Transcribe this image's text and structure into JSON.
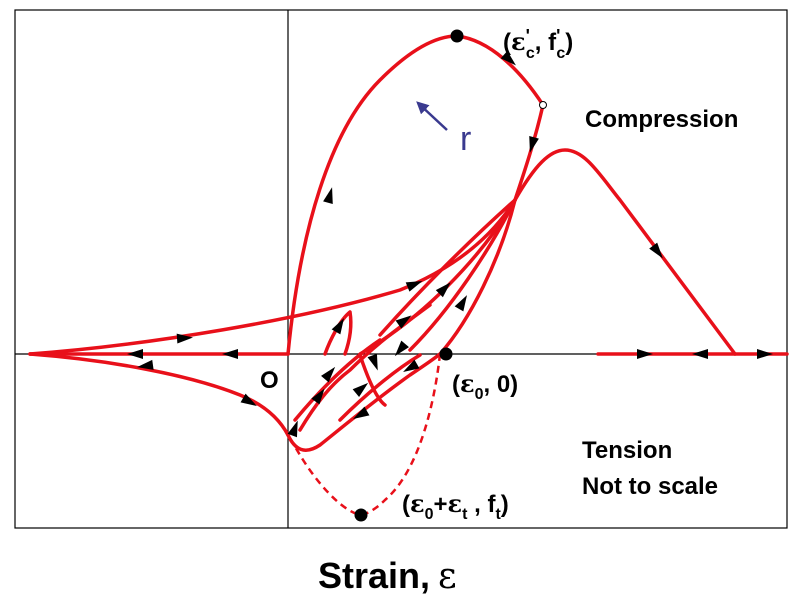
{
  "colors": {
    "curve": "#e8101a",
    "frame": "#000000",
    "arrow_r": "#3a3a8f",
    "background": "#ffffff"
  },
  "labels": {
    "peak_compression": "(ε'c , f'c)",
    "peak_open": "(",
    "peak_eps": "ε",
    "peak_prime1": "'",
    "peak_c1": "c",
    "peak_comma": ", f",
    "peak_prime2": "'",
    "peak_c2": "c",
    "peak_close": ")",
    "origin": "O",
    "eps0_open": "(",
    "eps0_eps": "ε",
    "eps0_sub": "0",
    "eps0_rest": ", 0)",
    "tension_peak_open": "(",
    "tension_peak_eps0": "ε",
    "tension_peak_sub0": "0",
    "tension_peak_plus": "+",
    "tension_peak_epst": "ε",
    "tension_peak_subt": "t",
    "tension_peak_comma": " , f",
    "tension_peak_subt2": "t",
    "tension_peak_close": ")",
    "r": "r",
    "compression": "Compression",
    "tension": "Tension",
    "not_to_scale": "Not to scale",
    "xaxis_label": "Strain,",
    "xaxis_symbol": "ε"
  }
}
